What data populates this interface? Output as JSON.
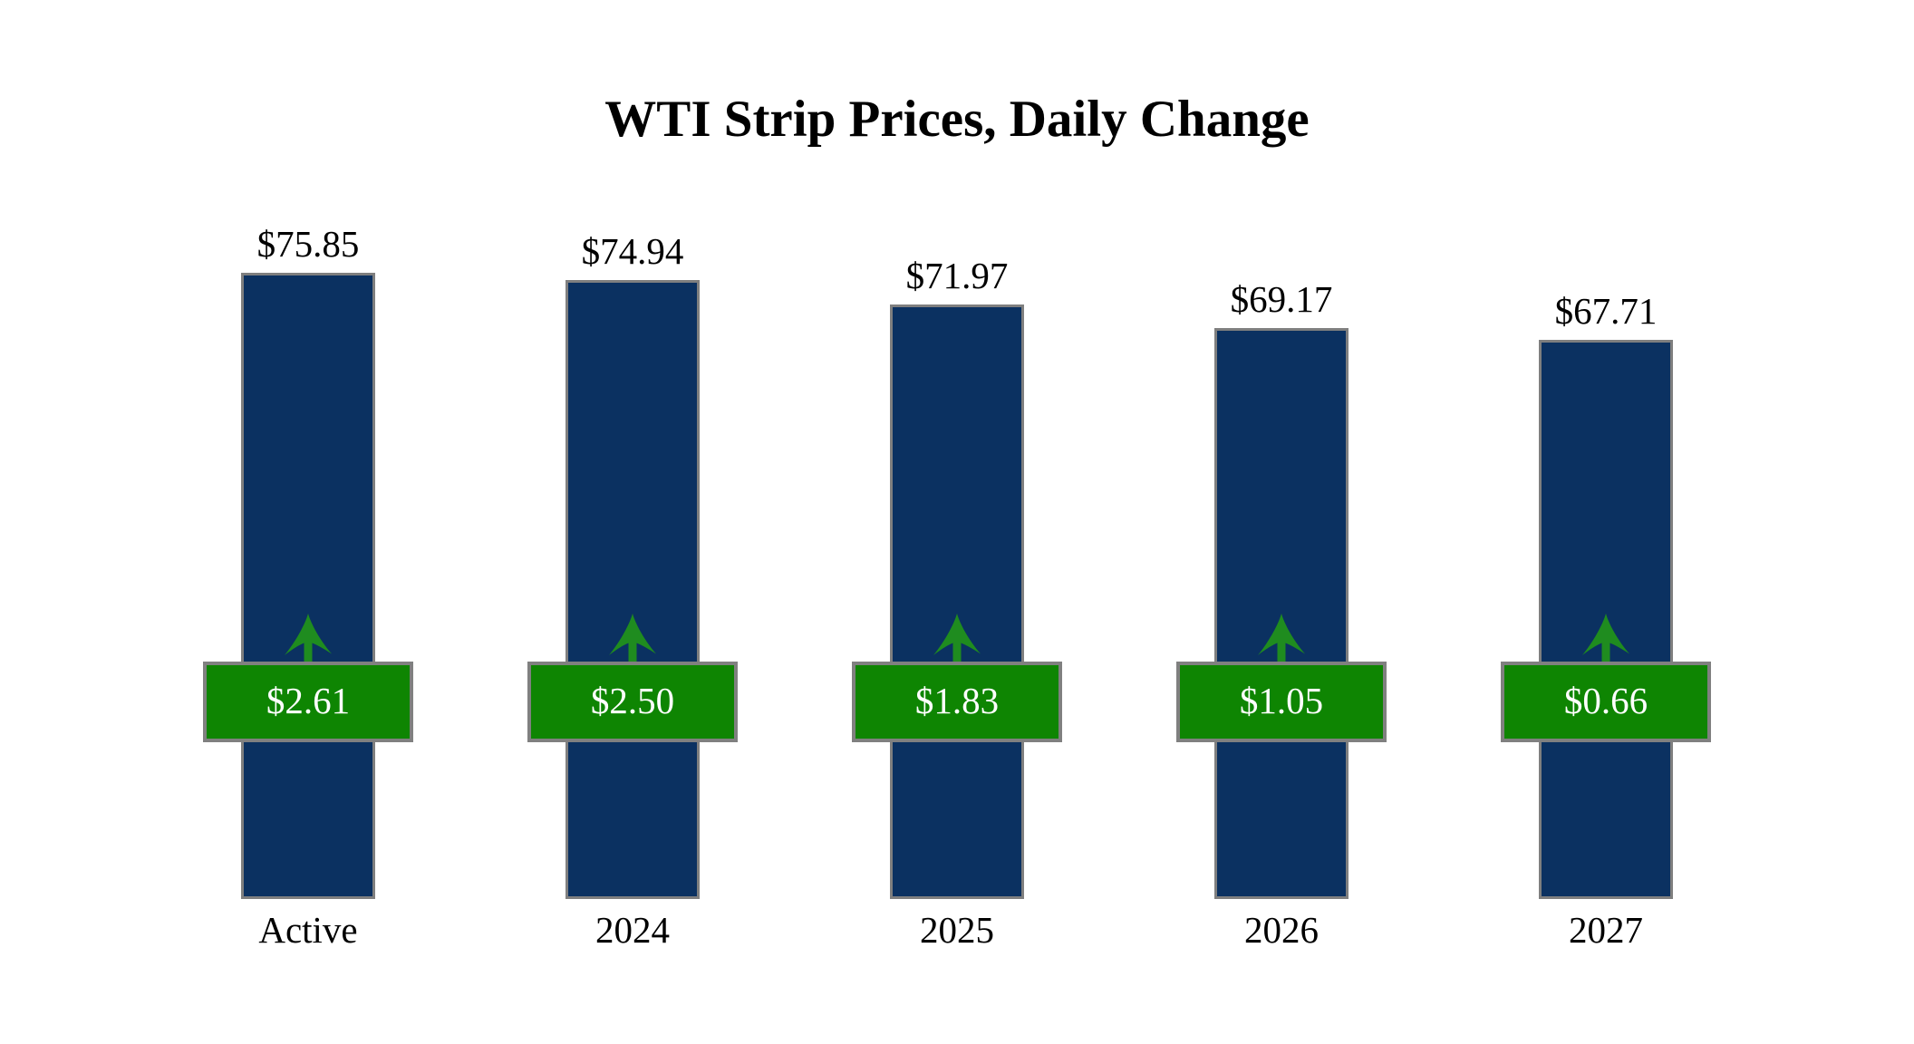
{
  "chart_data": {
    "type": "bar",
    "title": "WTI Strip Prices, Daily Change",
    "categories": [
      "Active",
      "2024",
      "2025",
      "2026",
      "2027"
    ],
    "series": [
      {
        "name": "Strip Price",
        "values": [
          75.85,
          74.94,
          71.97,
          69.17,
          67.71
        ],
        "labels": [
          "$75.85",
          "$74.94",
          "$71.97",
          "$69.17",
          "$67.71"
        ]
      },
      {
        "name": "Daily Change",
        "values": [
          2.61,
          2.5,
          1.83,
          1.05,
          0.66
        ],
        "labels": [
          "$2.61",
          "$2.50",
          "$1.83",
          "$1.05",
          "$0.66"
        ],
        "direction": "up"
      }
    ],
    "ylim": [
      0,
      80
    ],
    "axes_hidden": true,
    "grid": false,
    "legend": false,
    "colors": {
      "background": "#FFFFFF",
      "bar_fill": "#0B3161",
      "bar_border": "#7F7F7F",
      "badge_fill": "#0E8502",
      "badge_border": "#808080",
      "badge_text": "#FFFFFF",
      "arrow_green": "#1F8C1F",
      "label_text": "#000000"
    }
  }
}
